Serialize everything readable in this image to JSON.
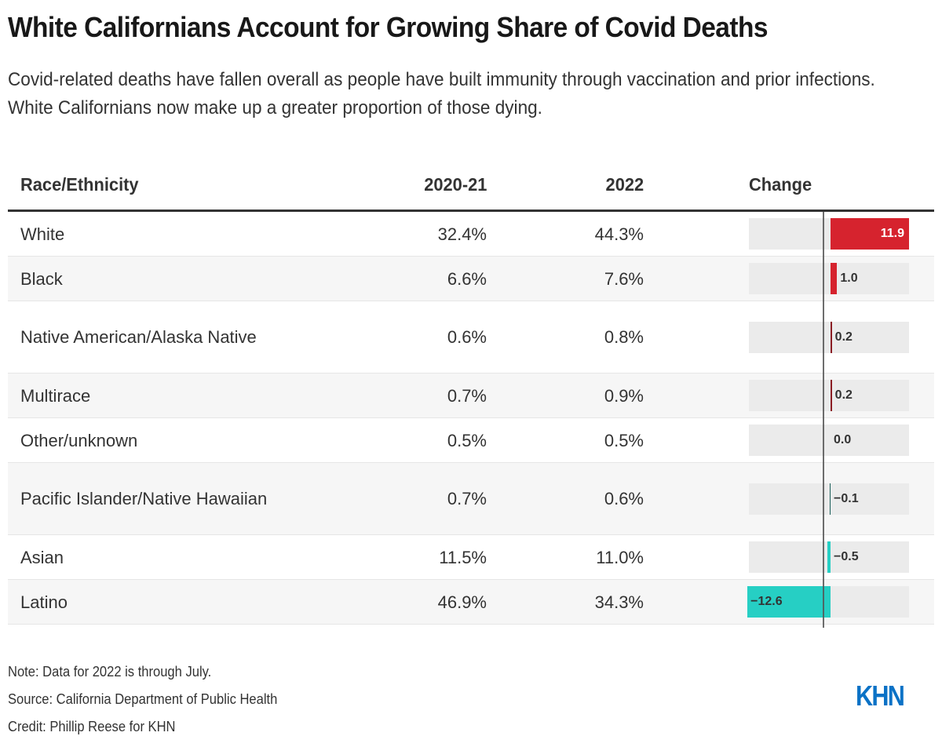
{
  "title": "White Californians Account for Growing Share of Covid Deaths",
  "subtitle": "Covid-related deaths have fallen overall as people have built immunity through vaccination and prior infections. White Californians now make up a greater proportion of those dying.",
  "colors": {
    "positive": "#d6232e",
    "negative": "#26cfc4",
    "positive_small": "#8b1d24",
    "negative_small": "#1a5f5a"
  },
  "chart_data": {
    "type": "table",
    "columns": [
      "Race/Ethnicity",
      "2020-21",
      "2022",
      "Change"
    ],
    "rows": [
      {
        "race": "White",
        "y2020_21": "32.4%",
        "y2022": "44.3%",
        "change": 11.9,
        "change_label": "11.9"
      },
      {
        "race": "Black",
        "y2020_21": "6.6%",
        "y2022": "7.6%",
        "change": 1.0,
        "change_label": "1.0"
      },
      {
        "race": "Native American/Alaska Native",
        "y2020_21": "0.6%",
        "y2022": "0.8%",
        "change": 0.2,
        "change_label": "0.2"
      },
      {
        "race": "Multirace",
        "y2020_21": "0.7%",
        "y2022": "0.9%",
        "change": 0.2,
        "change_label": "0.2"
      },
      {
        "race": "Other/unknown",
        "y2020_21": "0.5%",
        "y2022": "0.5%",
        "change": 0.0,
        "change_label": "0.0"
      },
      {
        "race": "Pacific Islander/Native Hawaiian",
        "y2020_21": "0.7%",
        "y2022": "0.6%",
        "change": -0.1,
        "change_label": "−0.1"
      },
      {
        "race": "Asian",
        "y2020_21": "11.5%",
        "y2022": "11.0%",
        "change": -0.5,
        "change_label": "−0.5"
      },
      {
        "race": "Latino",
        "y2020_21": "46.9%",
        "y2022": "34.3%",
        "change": -12.6,
        "change_label": "−12.6"
      }
    ],
    "change_range": [
      -12.6,
      11.9
    ]
  },
  "footer": {
    "note": "Note: Data for 2022 is through July.",
    "source": "Source: California Department of Public Health",
    "credit": "Credit: Phillip Reese for KHN"
  },
  "logo": "KHN"
}
